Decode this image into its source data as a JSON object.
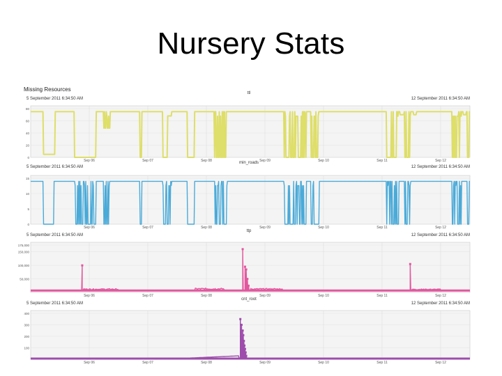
{
  "slide": {
    "title": "Nursery Stats"
  },
  "dashboard": {
    "heading": "Missing Resources"
  },
  "chart_data": [
    {
      "type": "line",
      "title": "ttl",
      "range_start": "5 September 2011 6:34:50 AM",
      "range_end": "12 September 2011 6:34:50 AM",
      "color": "#dede6a",
      "ylim": [
        0,
        80
      ],
      "y_ticks": [
        "0",
        "20",
        "40",
        "60",
        "80"
      ],
      "x_ticks": [
        "Sep 06",
        "Sep 07",
        "Sep 08",
        "Sep 09",
        "Sep 10",
        "Sep 11",
        "Sep 12"
      ],
      "x_tick_days": [
        1,
        2,
        3,
        4,
        5,
        6,
        7
      ],
      "baseline": 75,
      "drops": [
        [
          0.22,
          0.42,
          5,
          "flat"
        ],
        [
          0.75,
          1.12,
          0,
          "flat"
        ],
        [
          1.25,
          1.36,
          48,
          "spiky"
        ],
        [
          1.87,
          1.9,
          0,
          "flat"
        ],
        [
          2.25,
          2.33,
          0,
          "flat"
        ],
        [
          2.33,
          2.4,
          68,
          "flat"
        ],
        [
          2.67,
          2.79,
          0,
          "flat"
        ],
        [
          3.13,
          3.35,
          0,
          "spiky"
        ],
        [
          4.32,
          4.7,
          0,
          "spiky"
        ],
        [
          4.78,
          4.92,
          0,
          "spiky"
        ],
        [
          6.07,
          6.28,
          0,
          "spiky"
        ],
        [
          6.3,
          6.37,
          70,
          "flat"
        ],
        [
          6.38,
          6.48,
          0,
          "spiky"
        ],
        [
          6.53,
          6.58,
          70,
          "flat"
        ],
        [
          7.18,
          7.35,
          0,
          "spiky"
        ],
        [
          7.38,
          7.43,
          70,
          "flat"
        ],
        [
          7.45,
          7.48,
          0,
          "flat"
        ]
      ]
    },
    {
      "type": "line",
      "title": "min_roads",
      "range_start": "5 September 2011 6:34:50 AM",
      "range_end": "12 September 2011 6:34:50 AM",
      "color": "#4aaad8",
      "ylim": [
        0,
        15
      ],
      "y_ticks": [
        "0",
        "5",
        "10",
        "15"
      ],
      "y_ticks_extra": [
        "5",
        "10"
      ],
      "x_ticks": [
        "Sep 06",
        "Sep 07",
        "Sep 08",
        "Sep 09",
        "Sep 10",
        "Sep 11",
        "Sep 12"
      ],
      "x_tick_days": [
        1,
        2,
        3,
        4,
        5,
        6,
        7
      ],
      "baseline": 14,
      "drops": [
        [
          0.22,
          0.4,
          0,
          "flat"
        ],
        [
          0.75,
          1.12,
          0,
          "spiky"
        ],
        [
          1.25,
          1.36,
          0,
          "spiky"
        ],
        [
          1.87,
          1.9,
          0,
          "flat"
        ],
        [
          2.25,
          2.4,
          0,
          "spiky"
        ],
        [
          2.67,
          2.79,
          0,
          "flat"
        ],
        [
          3.13,
          3.35,
          0,
          "spiky"
        ],
        [
          4.32,
          4.7,
          0,
          "spiky"
        ],
        [
          4.78,
          4.92,
          0,
          "spiky"
        ],
        [
          6.07,
          6.28,
          0,
          "spiky"
        ],
        [
          6.38,
          6.48,
          0,
          "spiky"
        ],
        [
          7.18,
          7.35,
          0,
          "spiky"
        ],
        [
          7.45,
          7.48,
          0,
          "flat"
        ]
      ]
    },
    {
      "type": "line",
      "title": "ttp",
      "range_start": "5 September 2011 6:34:50 AM",
      "range_end": "12 September 2011 6:34:50 AM",
      "color": "#e2579e",
      "ylim": [
        0,
        175000
      ],
      "y_ticks": [
        "175,000",
        "150,000",
        "100,000",
        "50,000"
      ],
      "y_tick_values": [
        175000,
        150000,
        100000,
        50000
      ],
      "x_ticks": [
        "Sep 06",
        "Sep 07",
        "Sep 08",
        "Sep 09",
        "Sep 10",
        "Sep 11",
        "Sep 12"
      ],
      "x_tick_days": [
        1,
        2,
        3,
        4,
        5,
        6,
        7
      ],
      "baseline": 7000,
      "spikes": [
        [
          0.88,
          100000
        ],
        [
          3.62,
          160000
        ],
        [
          3.66,
          95000
        ],
        [
          3.68,
          85000
        ],
        [
          3.7,
          50000
        ],
        [
          3.72,
          25000
        ],
        [
          6.48,
          105000
        ]
      ],
      "bumps": [
        [
          0.9,
          1.5,
          14000
        ],
        [
          2.8,
          3.3,
          16000
        ],
        [
          3.75,
          4.3,
          15000
        ],
        [
          6.5,
          7.0,
          13000
        ]
      ]
    },
    {
      "type": "line",
      "title": "cnt_root",
      "range_start": "5 September 2011 6:34:50 AM",
      "range_end": "12 September 2011 6:34:50 AM",
      "color": "#9e4dac",
      "ylim": [
        0,
        400
      ],
      "y_ticks": [
        "400",
        "300",
        "200",
        "100"
      ],
      "y_tick_values": [
        400,
        300,
        200,
        100
      ],
      "x_ticks": [
        "Sep 06",
        "Sep 07",
        "Sep 08",
        "Sep 09",
        "Sep 10",
        "Sep 11",
        "Sep 12"
      ],
      "x_tick_days": [
        1,
        2,
        3,
        4,
        5,
        6,
        7
      ],
      "baseline": 6,
      "ramp": [
        2.5,
        3.55,
        30
      ],
      "spikes": [
        [
          3.58,
          350
        ],
        [
          3.6,
          300
        ],
        [
          3.62,
          250
        ],
        [
          3.63,
          210
        ],
        [
          3.64,
          160
        ],
        [
          3.65,
          120
        ],
        [
          3.66,
          90
        ],
        [
          3.67,
          60
        ],
        [
          3.68,
          30
        ]
      ],
      "bumps": []
    }
  ]
}
